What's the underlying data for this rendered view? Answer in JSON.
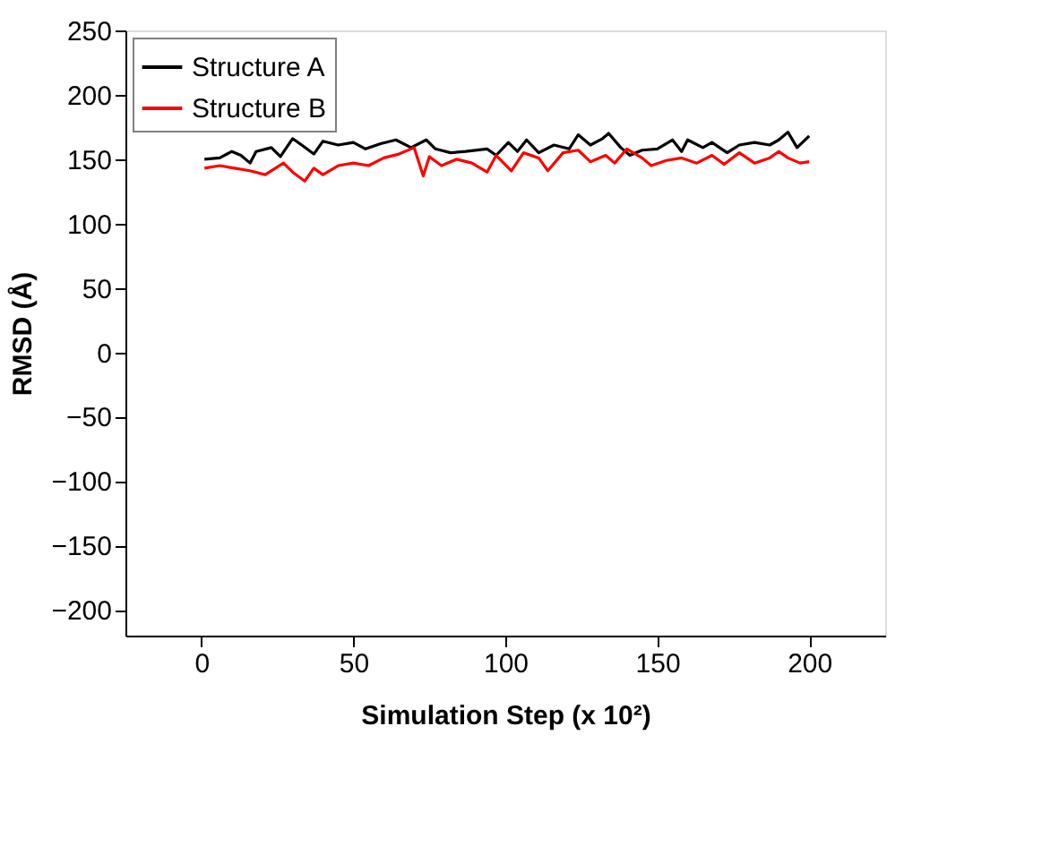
{
  "chart_data": {
    "type": "line",
    "xlabel": "Simulation Step (x 10²)",
    "ylabel": "RMSD (Å)",
    "xlim": [
      -25,
      225
    ],
    "ylim": [
      -220,
      250
    ],
    "xticks": [
      0,
      50,
      100,
      150,
      200
    ],
    "yticks": [
      -200,
      -150,
      -100,
      -50,
      0,
      50,
      100,
      150,
      200,
      250
    ],
    "grid": false,
    "legend": "top left",
    "marker": "none",
    "line_style": "solid",
    "series": [
      {
        "name": "Structure A",
        "color": "#000000",
        "x": [
          1,
          6,
          10,
          13,
          16,
          18,
          23,
          26,
          30,
          33,
          37,
          40,
          45,
          50,
          54,
          59,
          64,
          69,
          74,
          77,
          82,
          87,
          94,
          97,
          101,
          104,
          107,
          111,
          116,
          121,
          124,
          128,
          132,
          134,
          138,
          141,
          145,
          150,
          155,
          158,
          160,
          165,
          168,
          173,
          177,
          182,
          187,
          190,
          193,
          196,
          200
        ],
        "values": [
          150,
          151,
          156,
          153,
          147,
          156,
          159,
          152,
          166,
          161,
          154,
          164,
          161,
          163,
          158,
          162,
          165,
          159,
          165,
          158,
          155,
          156,
          158,
          153,
          163,
          156,
          165,
          155,
          161,
          158,
          169,
          161,
          166,
          170,
          159,
          153,
          157,
          158,
          165,
          156,
          165,
          159,
          163,
          155,
          161,
          163,
          161,
          165,
          171,
          159,
          168
        ]
      },
      {
        "name": "Structure B",
        "color": "#ff0000",
        "x": [
          1,
          6,
          11,
          16,
          21,
          27,
          30,
          34,
          37,
          40,
          45,
          50,
          55,
          60,
          65,
          70,
          73,
          75,
          79,
          84,
          89,
          94,
          97,
          102,
          106,
          111,
          114,
          119,
          124,
          128,
          133,
          136,
          140,
          145,
          148,
          153,
          158,
          163,
          168,
          172,
          177,
          182,
          187,
          190,
          193,
          197,
          200
        ],
        "values": [
          143,
          145,
          143,
          141,
          138,
          147,
          140,
          133,
          143,
          138,
          145,
          147,
          145,
          151,
          154,
          159,
          137,
          152,
          145,
          150,
          147,
          140,
          153,
          141,
          155,
          151,
          141,
          155,
          157,
          148,
          153,
          147,
          158,
          151,
          145,
          149,
          151,
          147,
          153,
          146,
          155,
          147,
          151,
          156,
          151,
          147,
          148
        ]
      }
    ]
  }
}
